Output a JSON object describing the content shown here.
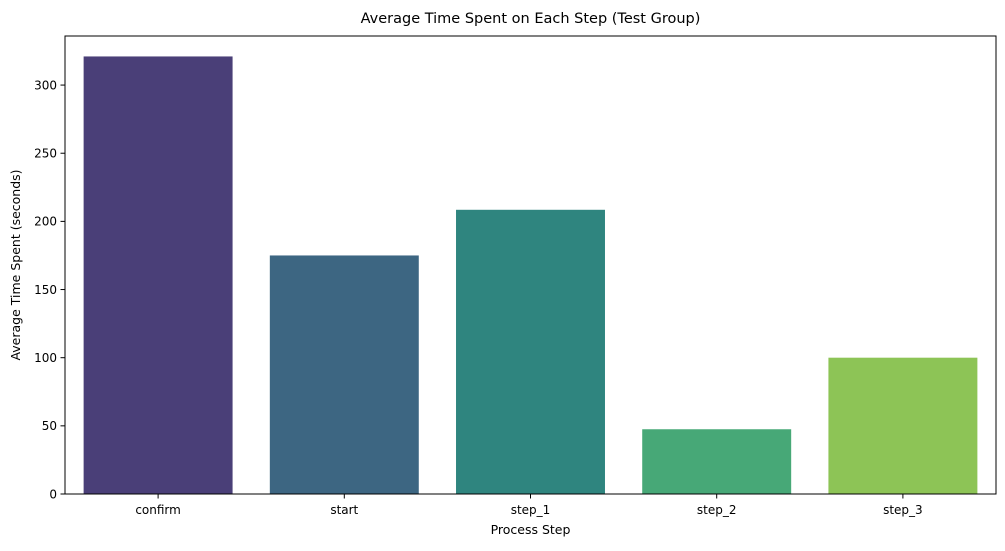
{
  "chart_data": {
    "type": "bar",
    "title": "Average Time Spent on Each Step (Test Group)",
    "xlabel": "Process Step",
    "ylabel": "Average Time Spent (seconds)",
    "categories": [
      "confirm",
      "start",
      "step_1",
      "step_2",
      "step_3"
    ],
    "values": [
      321,
      175,
      208.5,
      47.5,
      100
    ],
    "colors": [
      "#4a3f78",
      "#3d6682",
      "#2f857f",
      "#47a877",
      "#8dc456"
    ],
    "ylim": [
      0,
      336
    ],
    "yticks": [
      0,
      50,
      100,
      150,
      200,
      250,
      300
    ],
    "grid": false,
    "legend": "none"
  }
}
